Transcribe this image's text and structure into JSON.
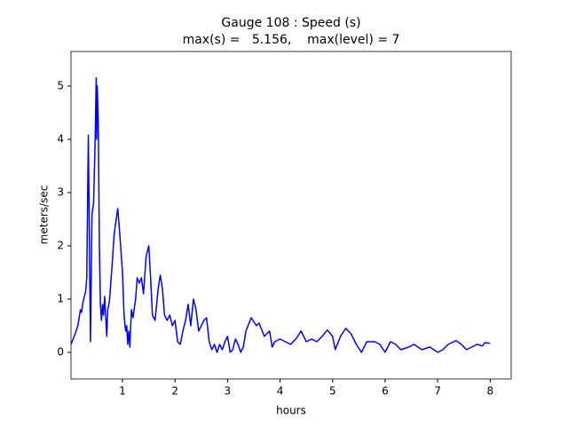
{
  "chart_data": {
    "type": "line",
    "title": "Gauge 108 : Speed (s)",
    "subtitle": "max(s) =   5.156,    max(level) = 7",
    "xlabel": "hours",
    "ylabel": "meters/sec",
    "xlim": [
      0.02,
      8.4
    ],
    "ylim": [
      -0.5,
      5.65
    ],
    "xticks": [
      1,
      2,
      3,
      4,
      5,
      6,
      7,
      8
    ],
    "yticks": [
      0,
      1,
      2,
      3,
      4,
      5
    ],
    "grid": false,
    "series": [
      {
        "color": "#0000ff",
        "x": [
          0.02,
          0.1,
          0.15,
          0.2,
          0.22,
          0.25,
          0.3,
          0.32,
          0.35,
          0.39,
          0.42,
          0.45,
          0.48,
          0.5,
          0.51,
          0.52,
          0.54,
          0.56,
          0.58,
          0.6,
          0.62,
          0.64,
          0.66,
          0.68,
          0.7,
          0.72,
          0.75,
          0.8,
          0.84,
          0.88,
          0.91,
          0.95,
          1.0,
          1.03,
          1.06,
          1.08,
          1.1,
          1.12,
          1.14,
          1.17,
          1.2,
          1.25,
          1.28,
          1.32,
          1.36,
          1.4,
          1.45,
          1.5,
          1.53,
          1.57,
          1.62,
          1.68,
          1.72,
          1.76,
          1.8,
          1.85,
          1.9,
          1.95,
          2.0,
          2.05,
          2.1,
          2.15,
          2.2,
          2.25,
          2.3,
          2.35,
          2.4,
          2.45,
          2.5,
          2.55,
          2.6,
          2.65,
          2.7,
          2.75,
          2.8,
          2.85,
          2.9,
          2.95,
          3.0,
          3.05,
          3.1,
          3.15,
          3.2,
          3.25,
          3.3,
          3.35,
          3.45,
          3.55,
          3.6,
          3.7,
          3.8,
          3.85,
          3.9,
          4.0,
          4.1,
          4.2,
          4.3,
          4.4,
          4.5,
          4.6,
          4.7,
          4.8,
          4.9,
          5.0,
          5.05,
          5.15,
          5.25,
          5.35,
          5.45,
          5.55,
          5.65,
          5.8,
          5.9,
          6.0,
          6.1,
          6.2,
          6.3,
          6.45,
          6.55,
          6.7,
          6.85,
          7.0,
          7.1,
          7.2,
          7.35,
          7.45,
          7.55,
          7.65,
          7.75,
          7.85,
          7.9,
          8.0
        ],
        "values": [
          0.15,
          0.35,
          0.5,
          0.8,
          0.75,
          0.95,
          1.15,
          1.4,
          4.08,
          0.2,
          2.6,
          2.8,
          4.0,
          5.156,
          4.0,
          5.0,
          4.3,
          2.0,
          0.9,
          0.6,
          0.9,
          0.7,
          1.05,
          0.7,
          0.3,
          0.8,
          0.95,
          1.6,
          2.2,
          2.5,
          2.7,
          2.2,
          1.5,
          0.7,
          0.4,
          0.5,
          0.15,
          0.4,
          0.1,
          0.8,
          0.65,
          1.0,
          1.4,
          1.3,
          1.4,
          1.1,
          1.8,
          2.0,
          1.5,
          0.7,
          0.6,
          1.2,
          1.45,
          1.2,
          0.7,
          0.6,
          0.7,
          0.5,
          0.6,
          0.2,
          0.15,
          0.4,
          0.6,
          0.9,
          0.5,
          1.0,
          0.8,
          0.4,
          0.5,
          0.6,
          0.65,
          0.2,
          0.05,
          0.15,
          0.0,
          0.15,
          0.05,
          0.2,
          0.3,
          0.0,
          0.05,
          0.25,
          0.15,
          0.0,
          0.1,
          0.4,
          0.65,
          0.5,
          0.55,
          0.3,
          0.4,
          0.1,
          0.2,
          0.25,
          0.2,
          0.15,
          0.25,
          0.4,
          0.2,
          0.25,
          0.2,
          0.3,
          0.42,
          0.3,
          0.05,
          0.3,
          0.45,
          0.35,
          0.15,
          0.0,
          0.2,
          0.2,
          0.15,
          0.0,
          0.2,
          0.15,
          0.05,
          0.1,
          0.15,
          0.05,
          0.1,
          0.0,
          0.05,
          0.15,
          0.22,
          0.15,
          0.05,
          0.1,
          0.15,
          0.12,
          0.18,
          0.17
        ]
      }
    ]
  }
}
